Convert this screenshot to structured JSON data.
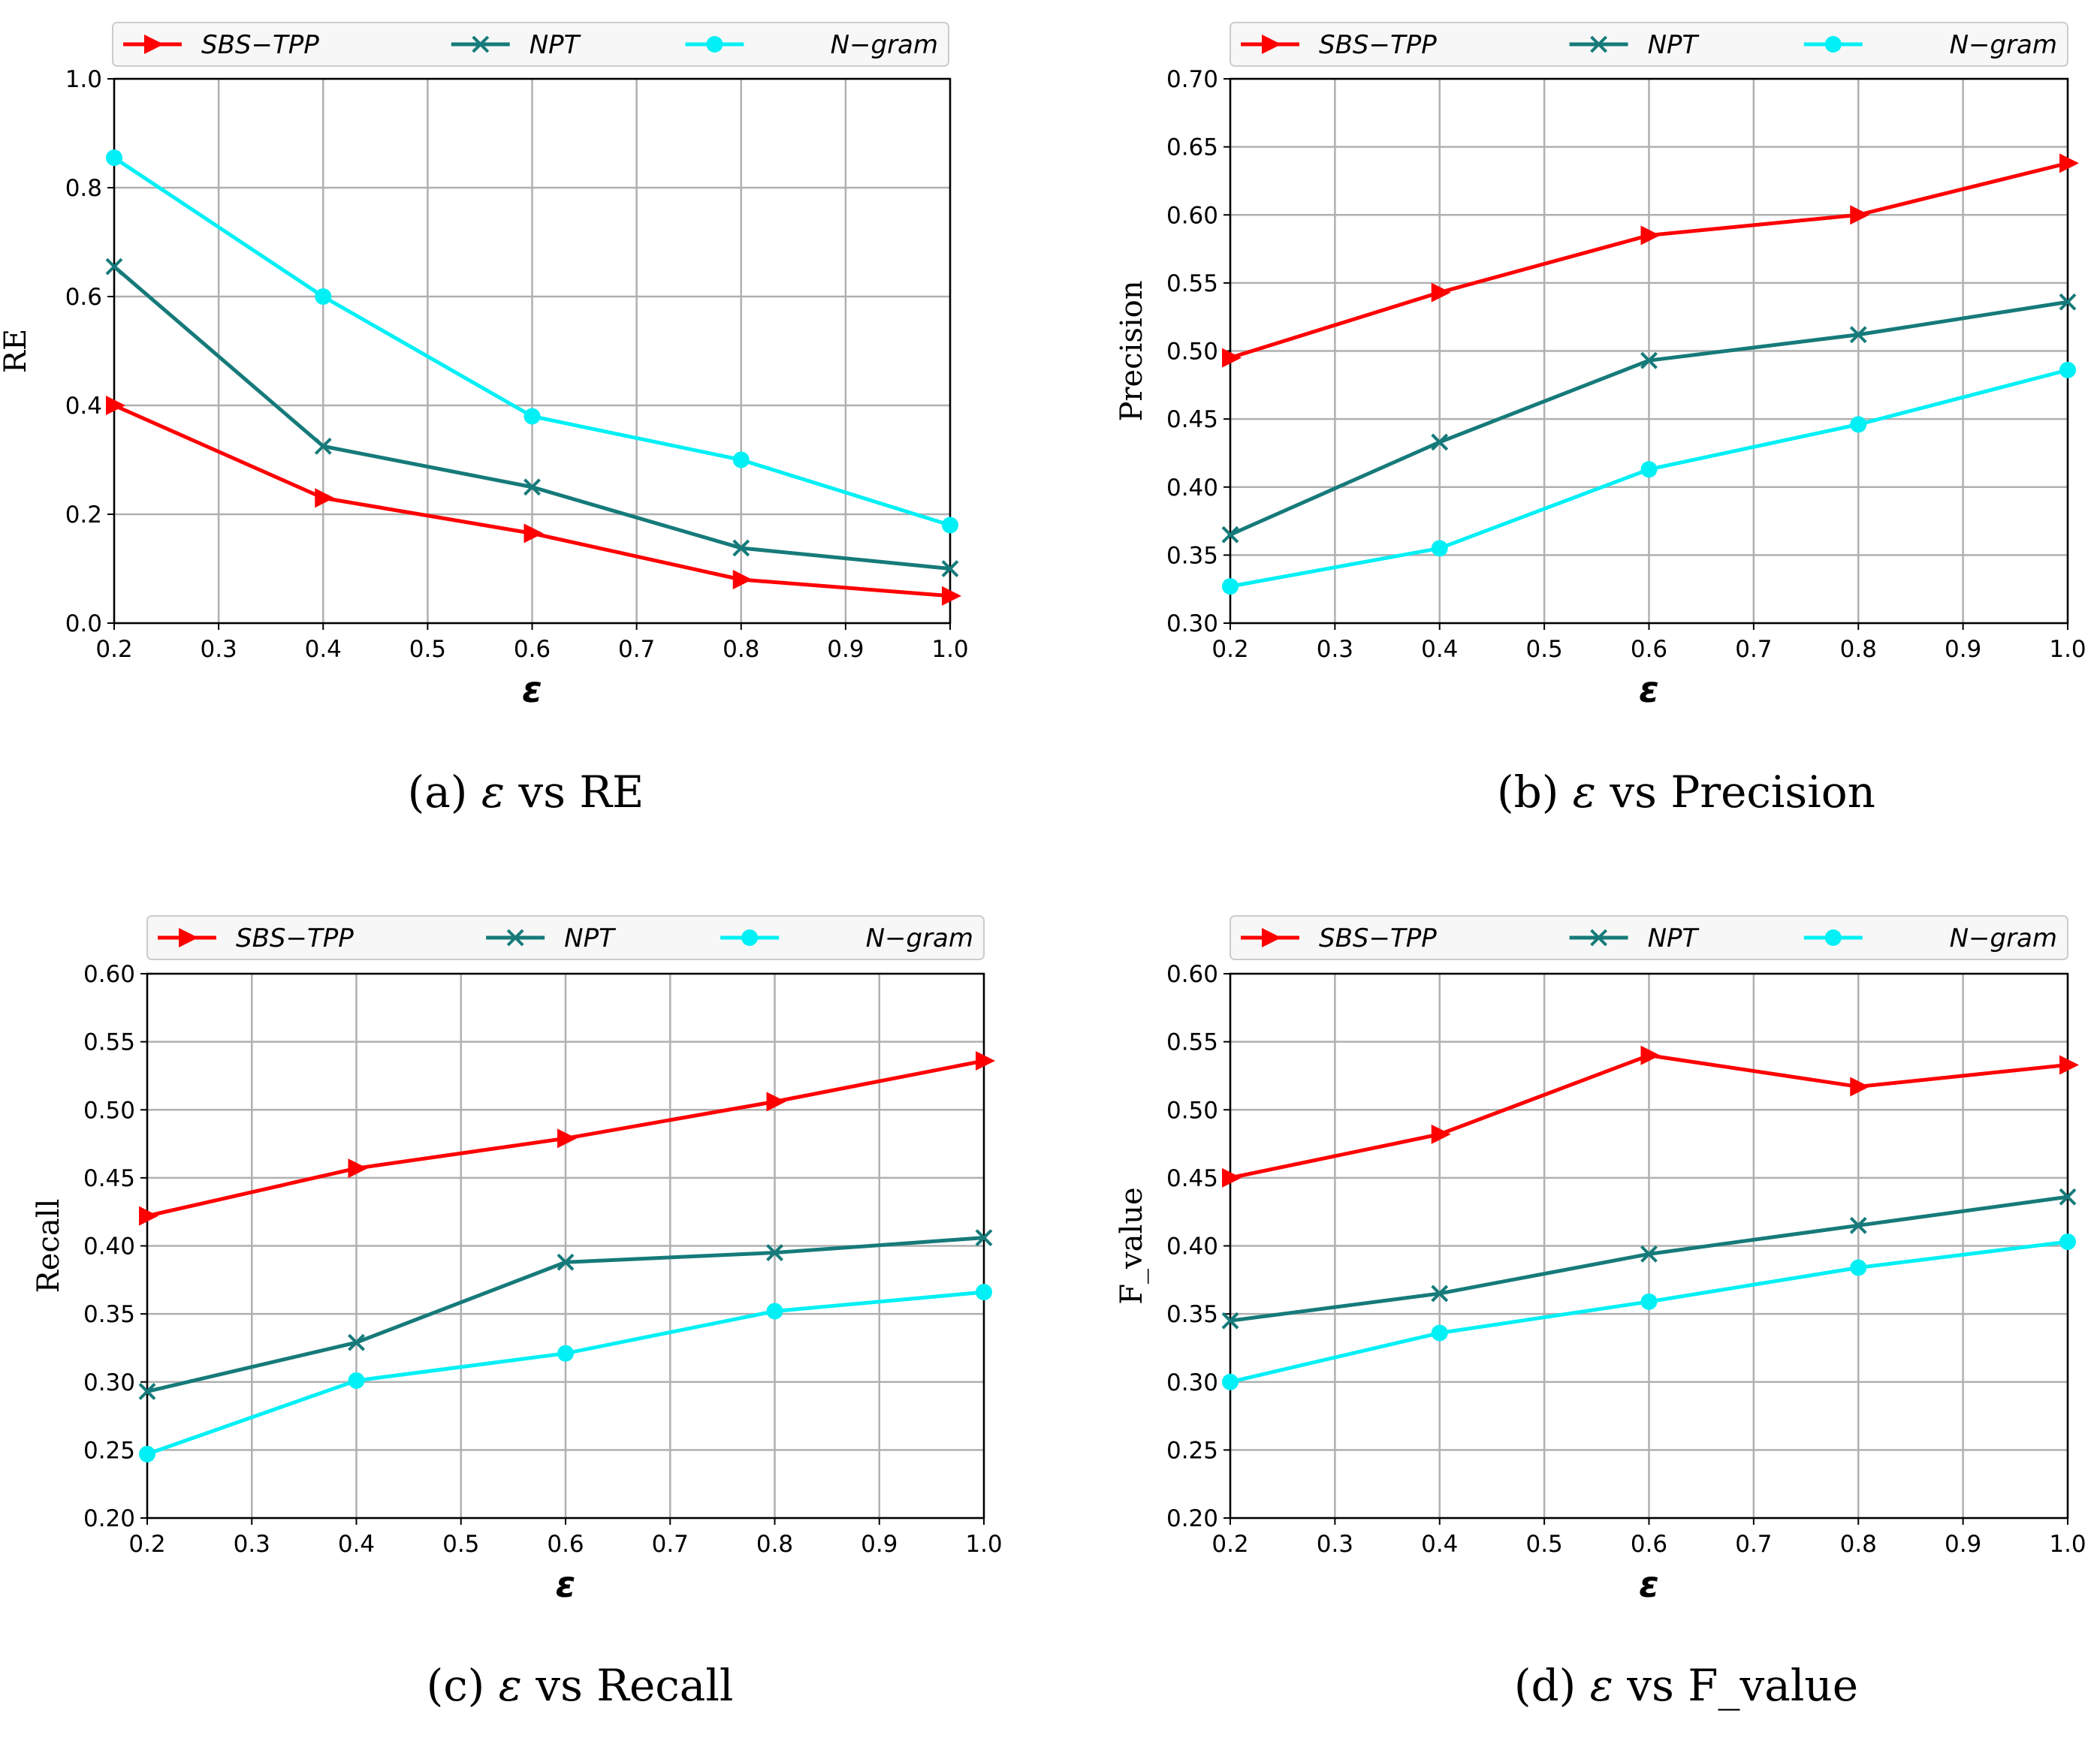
{
  "x_axis_symbol": "ε",
  "series_meta": [
    {
      "name": "SBS−TPP",
      "color": "#ff0000",
      "marker": "triangle-right"
    },
    {
      "name": "NPT",
      "color": "#167a7a",
      "marker": "x"
    },
    {
      "name": "N−gram",
      "color": "#00f0f5",
      "marker": "circle"
    }
  ],
  "chart_data": [
    {
      "type": "line",
      "panel": "a",
      "caption_prefix": "(a)",
      "caption_symbol": "ε",
      "caption_suffix": "vs RE",
      "xlabel": "ε",
      "ylabel": "RE",
      "xlim": [
        0.2,
        1.0
      ],
      "ylim": [
        0.0,
        1.0
      ],
      "xticks": [
        "0.2",
        "0.3",
        "0.4",
        "0.5",
        "0.6",
        "0.7",
        "0.8",
        "0.9",
        "1.0"
      ],
      "yticks": [
        "0.0",
        "0.2",
        "0.4",
        "0.6",
        "0.8",
        "1.0"
      ],
      "grid": true,
      "legend": "top",
      "x": [
        0.2,
        0.4,
        0.6,
        0.8,
        1.0
      ],
      "series": [
        {
          "name": "SBS−TPP",
          "values": [
            0.4,
            0.23,
            0.165,
            0.08,
            0.05
          ]
        },
        {
          "name": "NPT",
          "values": [
            0.655,
            0.325,
            0.25,
            0.138,
            0.1
          ]
        },
        {
          "name": "N−gram",
          "values": [
            0.855,
            0.6,
            0.38,
            0.3,
            0.18
          ]
        }
      ]
    },
    {
      "type": "line",
      "panel": "b",
      "caption_prefix": "(b)",
      "caption_symbol": "ε",
      "caption_suffix": "vs Precision",
      "xlabel": "ε",
      "ylabel": "Precision",
      "xlim": [
        0.2,
        1.0
      ],
      "ylim": [
        0.3,
        0.7
      ],
      "xticks": [
        "0.2",
        "0.3",
        "0.4",
        "0.5",
        "0.6",
        "0.7",
        "0.8",
        "0.9",
        "1.0"
      ],
      "yticks": [
        "0.30",
        "0.35",
        "0.40",
        "0.45",
        "0.50",
        "0.55",
        "0.60",
        "0.65",
        "0.70"
      ],
      "grid": true,
      "legend": "top",
      "x": [
        0.2,
        0.4,
        0.6,
        0.8,
        1.0
      ],
      "series": [
        {
          "name": "SBS−TPP",
          "values": [
            0.495,
            0.543,
            0.585,
            0.6,
            0.638
          ]
        },
        {
          "name": "NPT",
          "values": [
            0.365,
            0.433,
            0.493,
            0.512,
            0.536
          ]
        },
        {
          "name": "N−gram",
          "values": [
            0.327,
            0.355,
            0.413,
            0.446,
            0.486
          ]
        }
      ]
    },
    {
      "type": "line",
      "panel": "c",
      "caption_prefix": "(c)",
      "caption_symbol": "ε",
      "caption_suffix": "vs Recall",
      "xlabel": "ε",
      "ylabel": "Recall",
      "xlim": [
        0.2,
        1.0
      ],
      "ylim": [
        0.2,
        0.6
      ],
      "xticks": [
        "0.2",
        "0.3",
        "0.4",
        "0.5",
        "0.6",
        "0.7",
        "0.8",
        "0.9",
        "1.0"
      ],
      "yticks": [
        "0.20",
        "0.25",
        "0.30",
        "0.35",
        "0.40",
        "0.45",
        "0.50",
        "0.55",
        "0.60"
      ],
      "grid": true,
      "legend": "top",
      "x": [
        0.2,
        0.4,
        0.6,
        0.8,
        1.0
      ],
      "series": [
        {
          "name": "SBS−TPP",
          "values": [
            0.422,
            0.457,
            0.479,
            0.506,
            0.536
          ]
        },
        {
          "name": "NPT",
          "values": [
            0.293,
            0.329,
            0.388,
            0.395,
            0.406
          ]
        },
        {
          "name": "N−gram",
          "values": [
            0.247,
            0.301,
            0.321,
            0.352,
            0.366
          ]
        }
      ]
    },
    {
      "type": "line",
      "panel": "d",
      "caption_prefix": "(d)",
      "caption_symbol": "ε",
      "caption_suffix": "vs F_value",
      "xlabel": "ε",
      "ylabel": "F_value",
      "xlim": [
        0.2,
        1.0
      ],
      "ylim": [
        0.2,
        0.6
      ],
      "xticks": [
        "0.2",
        "0.3",
        "0.4",
        "0.5",
        "0.6",
        "0.7",
        "0.8",
        "0.9",
        "1.0"
      ],
      "yticks": [
        "0.20",
        "0.25",
        "0.30",
        "0.35",
        "0.40",
        "0.45",
        "0.50",
        "0.55",
        "0.60"
      ],
      "grid": true,
      "legend": "top",
      "x": [
        0.2,
        0.4,
        0.6,
        0.8,
        1.0
      ],
      "series": [
        {
          "name": "SBS−TPP",
          "values": [
            0.45,
            0.482,
            0.54,
            0.517,
            0.533
          ]
        },
        {
          "name": "NPT",
          "values": [
            0.345,
            0.365,
            0.394,
            0.415,
            0.436
          ]
        },
        {
          "name": "N−gram",
          "values": [
            0.3,
            0.336,
            0.359,
            0.384,
            0.403
          ]
        }
      ]
    }
  ]
}
